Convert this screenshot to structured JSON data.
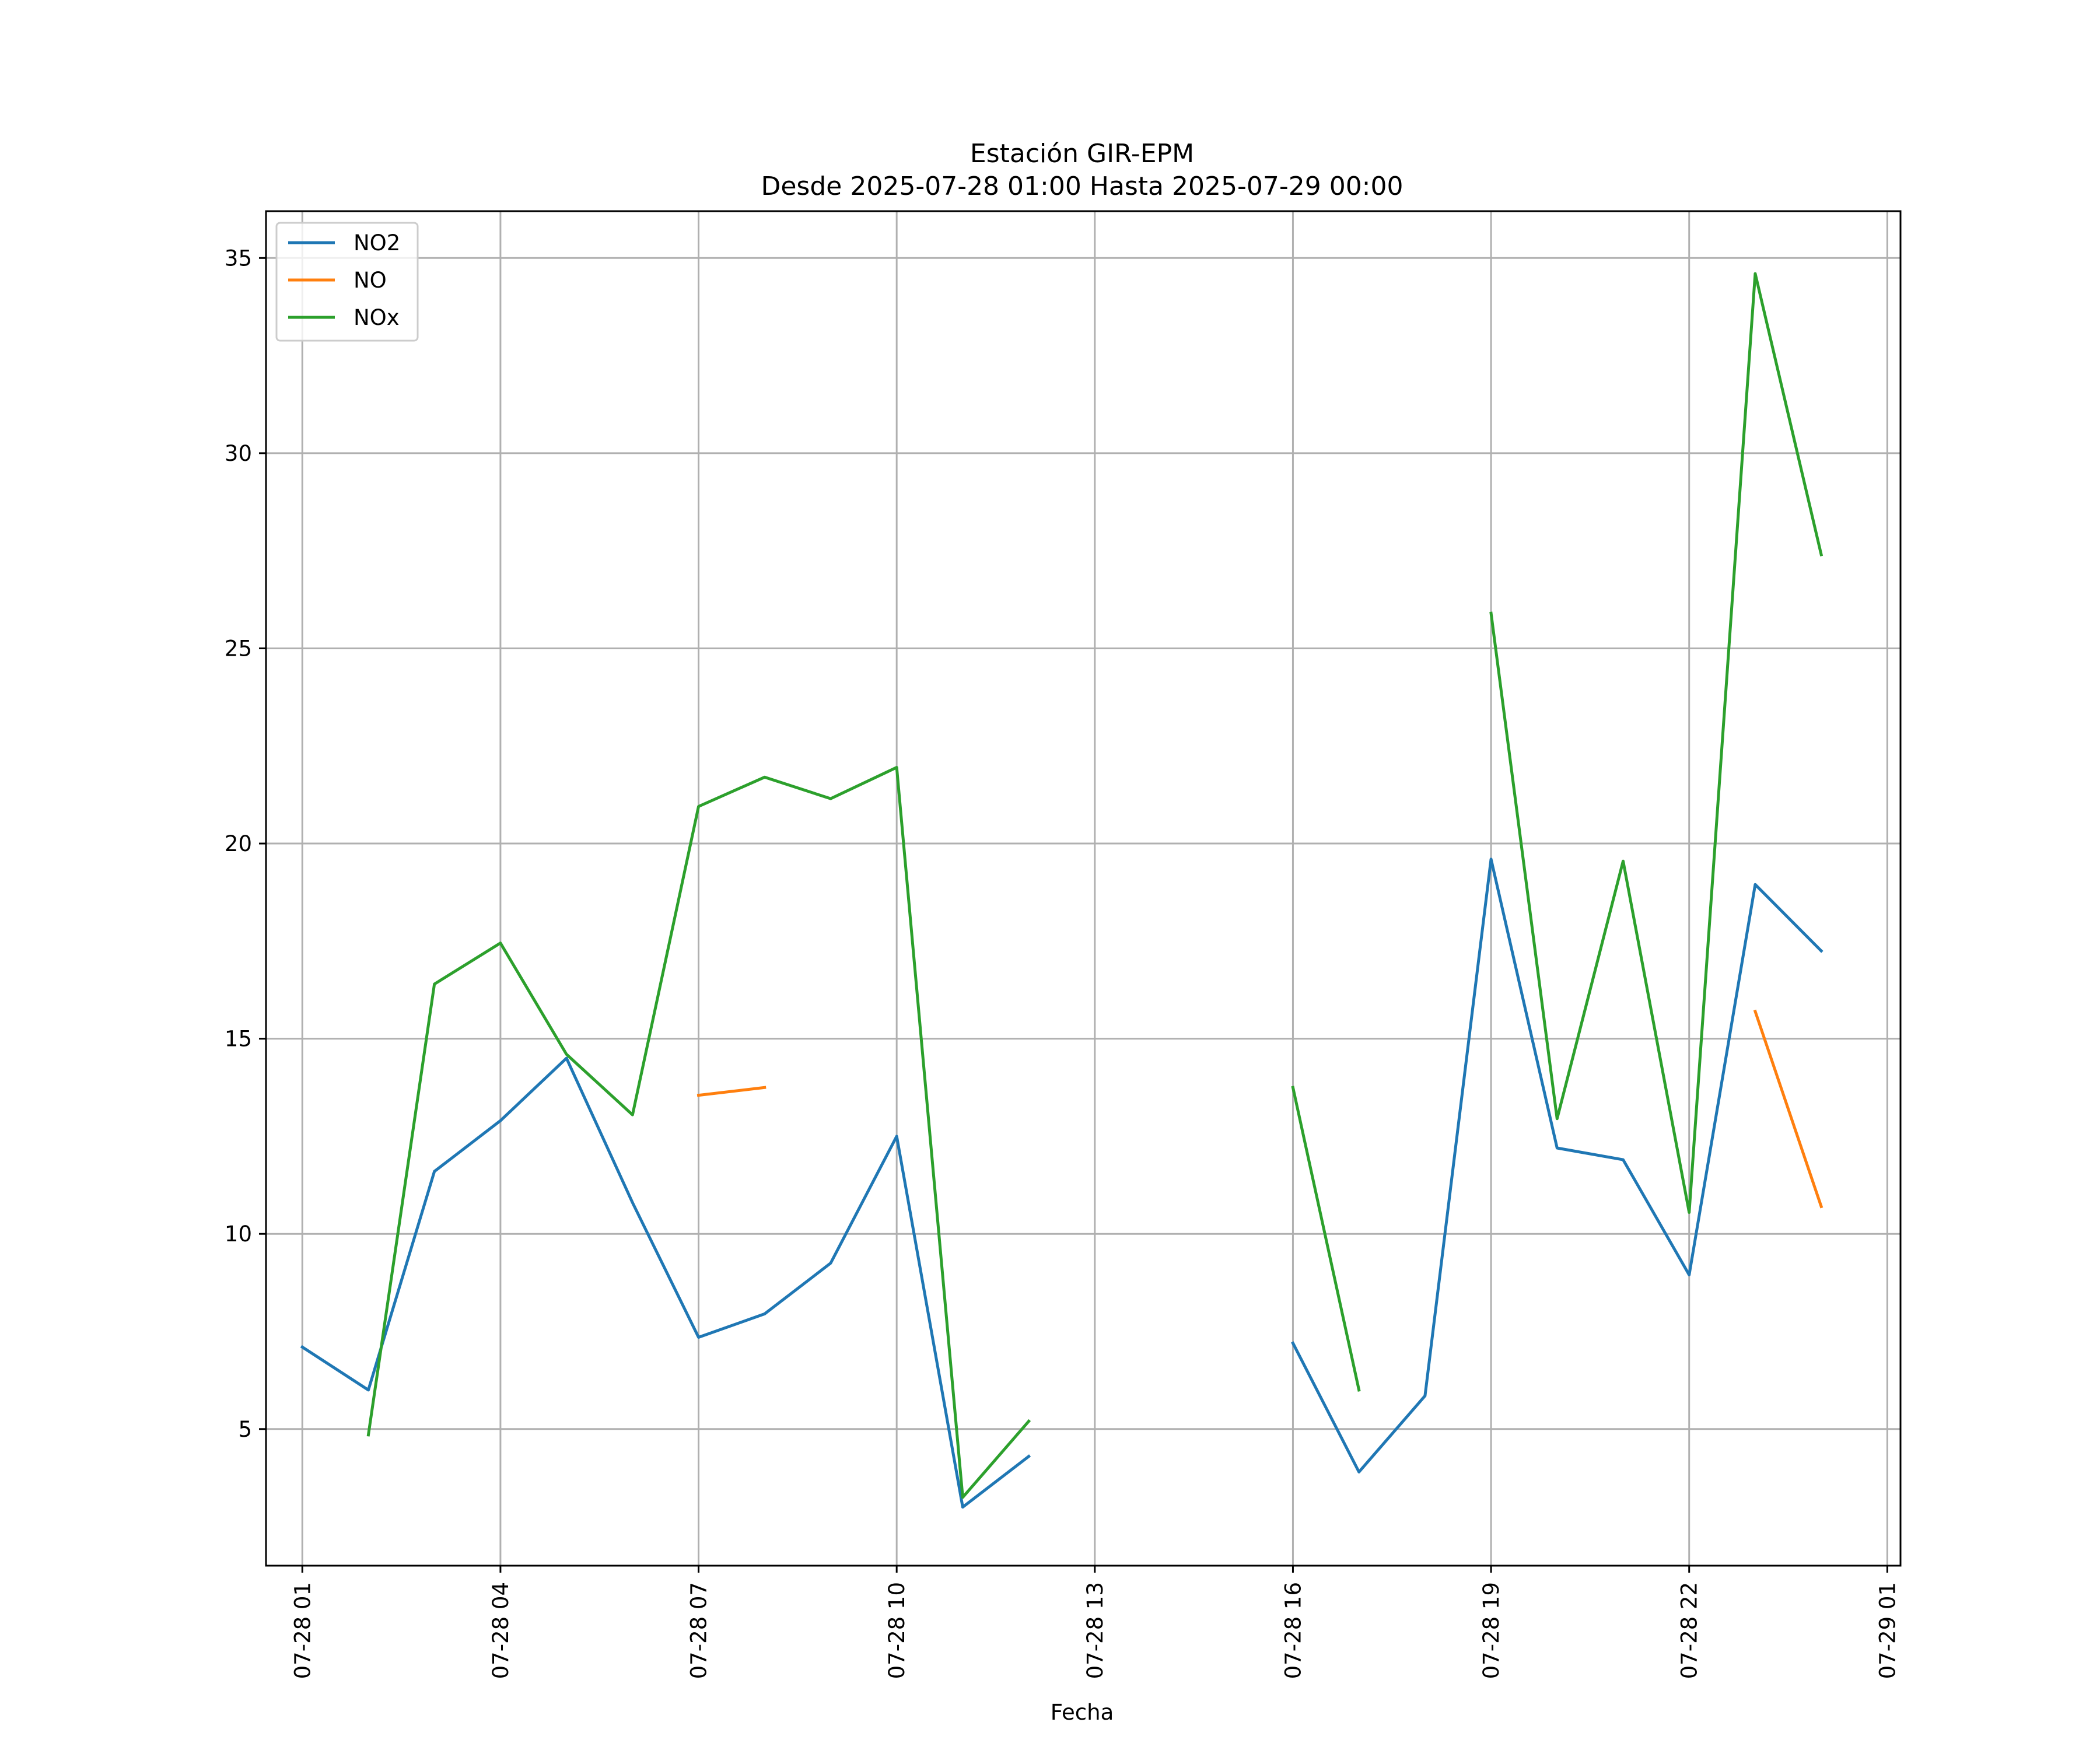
{
  "chart_data": {
    "type": "line",
    "title_lines": [
      "Estación GIR-EPM",
      "Desde 2025-07-28 01:00 Hasta 2025-07-29 00:00"
    ],
    "xlabel": "Fecha",
    "ylabel": "",
    "x_unit": "hour",
    "x_origin": "2025-07-28 00:00",
    "xlim": [
      0.45,
      25.2
    ],
    "ylim": [
      1.5,
      36.2
    ],
    "grid": true,
    "legend_position": "upper-left",
    "x_ticks": [
      {
        "x": 1,
        "label": "07-28 01"
      },
      {
        "x": 4,
        "label": "07-28 04"
      },
      {
        "x": 7,
        "label": "07-28 07"
      },
      {
        "x": 10,
        "label": "07-28 10"
      },
      {
        "x": 13,
        "label": "07-28 13"
      },
      {
        "x": 16,
        "label": "07-28 16"
      },
      {
        "x": 19,
        "label": "07-28 19"
      },
      {
        "x": 22,
        "label": "07-28 22"
      },
      {
        "x": 25,
        "label": "07-29 01"
      }
    ],
    "y_ticks": [
      5,
      10,
      15,
      20,
      25,
      30,
      35
    ],
    "x": [
      "07-28 01",
      "07-28 02",
      "07-28 03",
      "07-28 04",
      "07-28 05",
      "07-28 06",
      "07-28 07",
      "07-28 08",
      "07-28 09",
      "07-28 10",
      "07-28 11",
      "07-28 12",
      "07-28 13",
      "07-28 14",
      "07-28 15",
      "07-28 16",
      "07-28 17",
      "07-28 18",
      "07-28 19",
      "07-28 20",
      "07-28 21",
      "07-28 22",
      "07-28 23",
      "07-29 00"
    ],
    "series": [
      {
        "name": "NO2",
        "color": "#1f77b4",
        "values": [
          7.1,
          6.0,
          11.6,
          12.9,
          14.5,
          10.8,
          7.35,
          7.95,
          9.25,
          12.5,
          3.0,
          4.3,
          null,
          null,
          null,
          7.2,
          3.9,
          5.85,
          19.6,
          12.2,
          11.9,
          8.95,
          18.95,
          17.25
        ]
      },
      {
        "name": "NO",
        "color": "#ff7f0e",
        "values": [
          null,
          null,
          null,
          null,
          null,
          null,
          13.55,
          13.75,
          null,
          null,
          null,
          null,
          null,
          null,
          null,
          null,
          null,
          null,
          null,
          null,
          null,
          null,
          15.7,
          10.7
        ]
      },
      {
        "name": "NOx",
        "color": "#2ca02c",
        "values": [
          null,
          4.85,
          16.4,
          17.45,
          14.6,
          13.05,
          20.95,
          21.7,
          21.15,
          21.95,
          3.25,
          5.2,
          null,
          null,
          null,
          13.75,
          6.0,
          null,
          25.9,
          12.95,
          19.55,
          10.55,
          34.6,
          27.4
        ]
      }
    ]
  }
}
